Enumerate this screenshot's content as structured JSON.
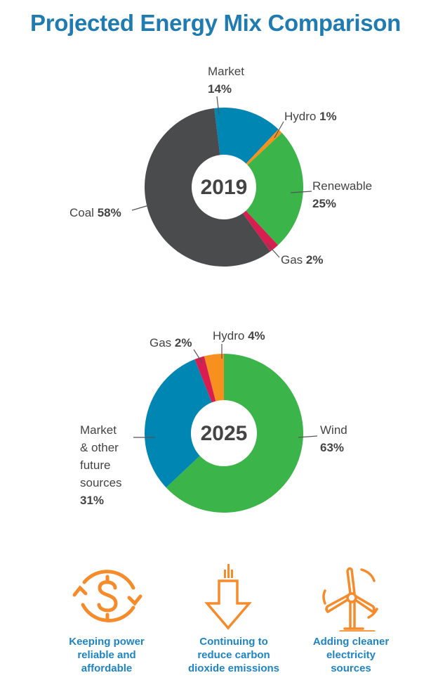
{
  "title": "Projected Energy Mix Comparison",
  "chart_data": [
    {
      "type": "pie",
      "center_label": "2019",
      "categories": [
        "Market",
        "Hydro",
        "Renewable",
        "Gas",
        "Coal"
      ],
      "values": [
        14,
        1,
        25,
        2,
        58
      ],
      "value_labels": [
        "14%",
        "1%",
        "25%",
        "2%",
        "58%"
      ],
      "colors": [
        "#0086b3",
        "#f7901e",
        "#3bb54a",
        "#d81e50",
        "#4a4b4d"
      ]
    },
    {
      "type": "pie",
      "center_label": "2025",
      "categories": [
        "Wind",
        "Market & other future sources",
        "Gas",
        "Hydro"
      ],
      "category_lines": [
        "Market",
        "& other",
        "future",
        "sources"
      ],
      "values": [
        63,
        31,
        2,
        4
      ],
      "value_labels": [
        "63%",
        "31%",
        "2%",
        "4%"
      ],
      "colors": [
        "#3bb54a",
        "#0086b3",
        "#d81e50",
        "#f7901e"
      ]
    }
  ],
  "goals": [
    {
      "icon": "dollar-cycle-icon",
      "lines": [
        "Keeping power",
        "reliable and",
        "affordable"
      ]
    },
    {
      "icon": "down-arrow-emissions-icon",
      "lines": [
        "Continuing to",
        "reduce carbon",
        "dioxide emissions"
      ]
    },
    {
      "icon": "wind-turbine-icon",
      "lines": [
        "Adding cleaner",
        "electricity",
        "sources"
      ]
    }
  ],
  "icon_color": "#f58b2a"
}
